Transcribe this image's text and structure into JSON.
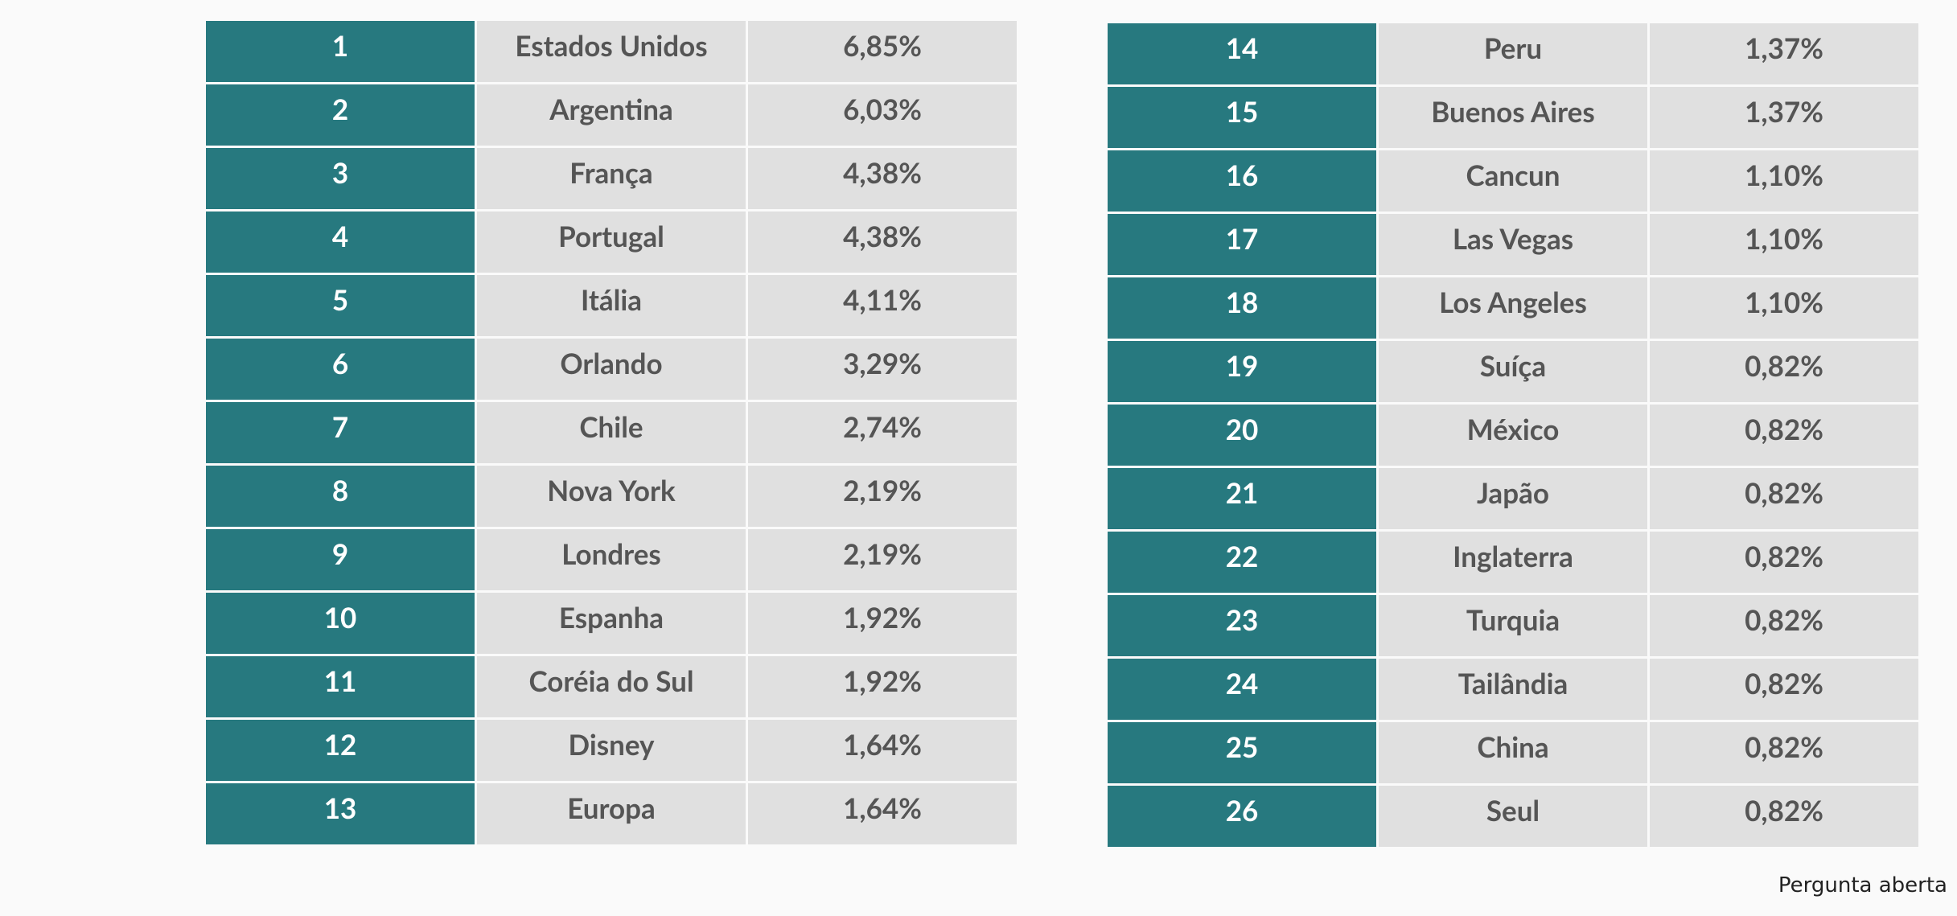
{
  "tables": [
    {
      "rows": [
        [
          1,
          "Estados Unidos",
          "6,85%"
        ],
        [
          2,
          "Argentina",
          "6,03%"
        ],
        [
          3,
          "França",
          "4,38%"
        ],
        [
          4,
          "Portugal",
          "4,38%"
        ],
        [
          5,
          "Itália",
          "4,11%"
        ],
        [
          6,
          "Orlando",
          "3,29%"
        ],
        [
          7,
          "Chile",
          "2,74%"
        ],
        [
          8,
          "Nova York",
          "2,19%"
        ],
        [
          9,
          "Londres",
          "2,19%"
        ],
        [
          10,
          "Espanha",
          "1,92%"
        ],
        [
          11,
          "Coréia do Sul",
          "1,92%"
        ],
        [
          12,
          "Disney",
          "1,64%"
        ],
        [
          13,
          "Europa",
          "1,64%"
        ]
      ]
    },
    {
      "rows": [
        [
          14,
          "Peru",
          "1,37%"
        ],
        [
          15,
          "Buenos Aires",
          "1,37%"
        ],
        [
          16,
          "Cancun",
          "1,10%"
        ],
        [
          17,
          "Las Vegas",
          "1,10%"
        ],
        [
          18,
          "Los Angeles",
          "1,10%"
        ],
        [
          19,
          "Suíça",
          "0,82%"
        ],
        [
          20,
          "México",
          "0,82%"
        ],
        [
          21,
          "Japão",
          "0,82%"
        ],
        [
          22,
          "Inglaterra",
          "0,82%"
        ],
        [
          23,
          "Turquia",
          "0,82%"
        ],
        [
          24,
          "Tailândia",
          "0,82%"
        ],
        [
          25,
          "China",
          "0,82%"
        ],
        [
          26,
          "Seul",
          "0,82%"
        ]
      ]
    }
  ],
  "footer": "Pergunta aberta"
}
